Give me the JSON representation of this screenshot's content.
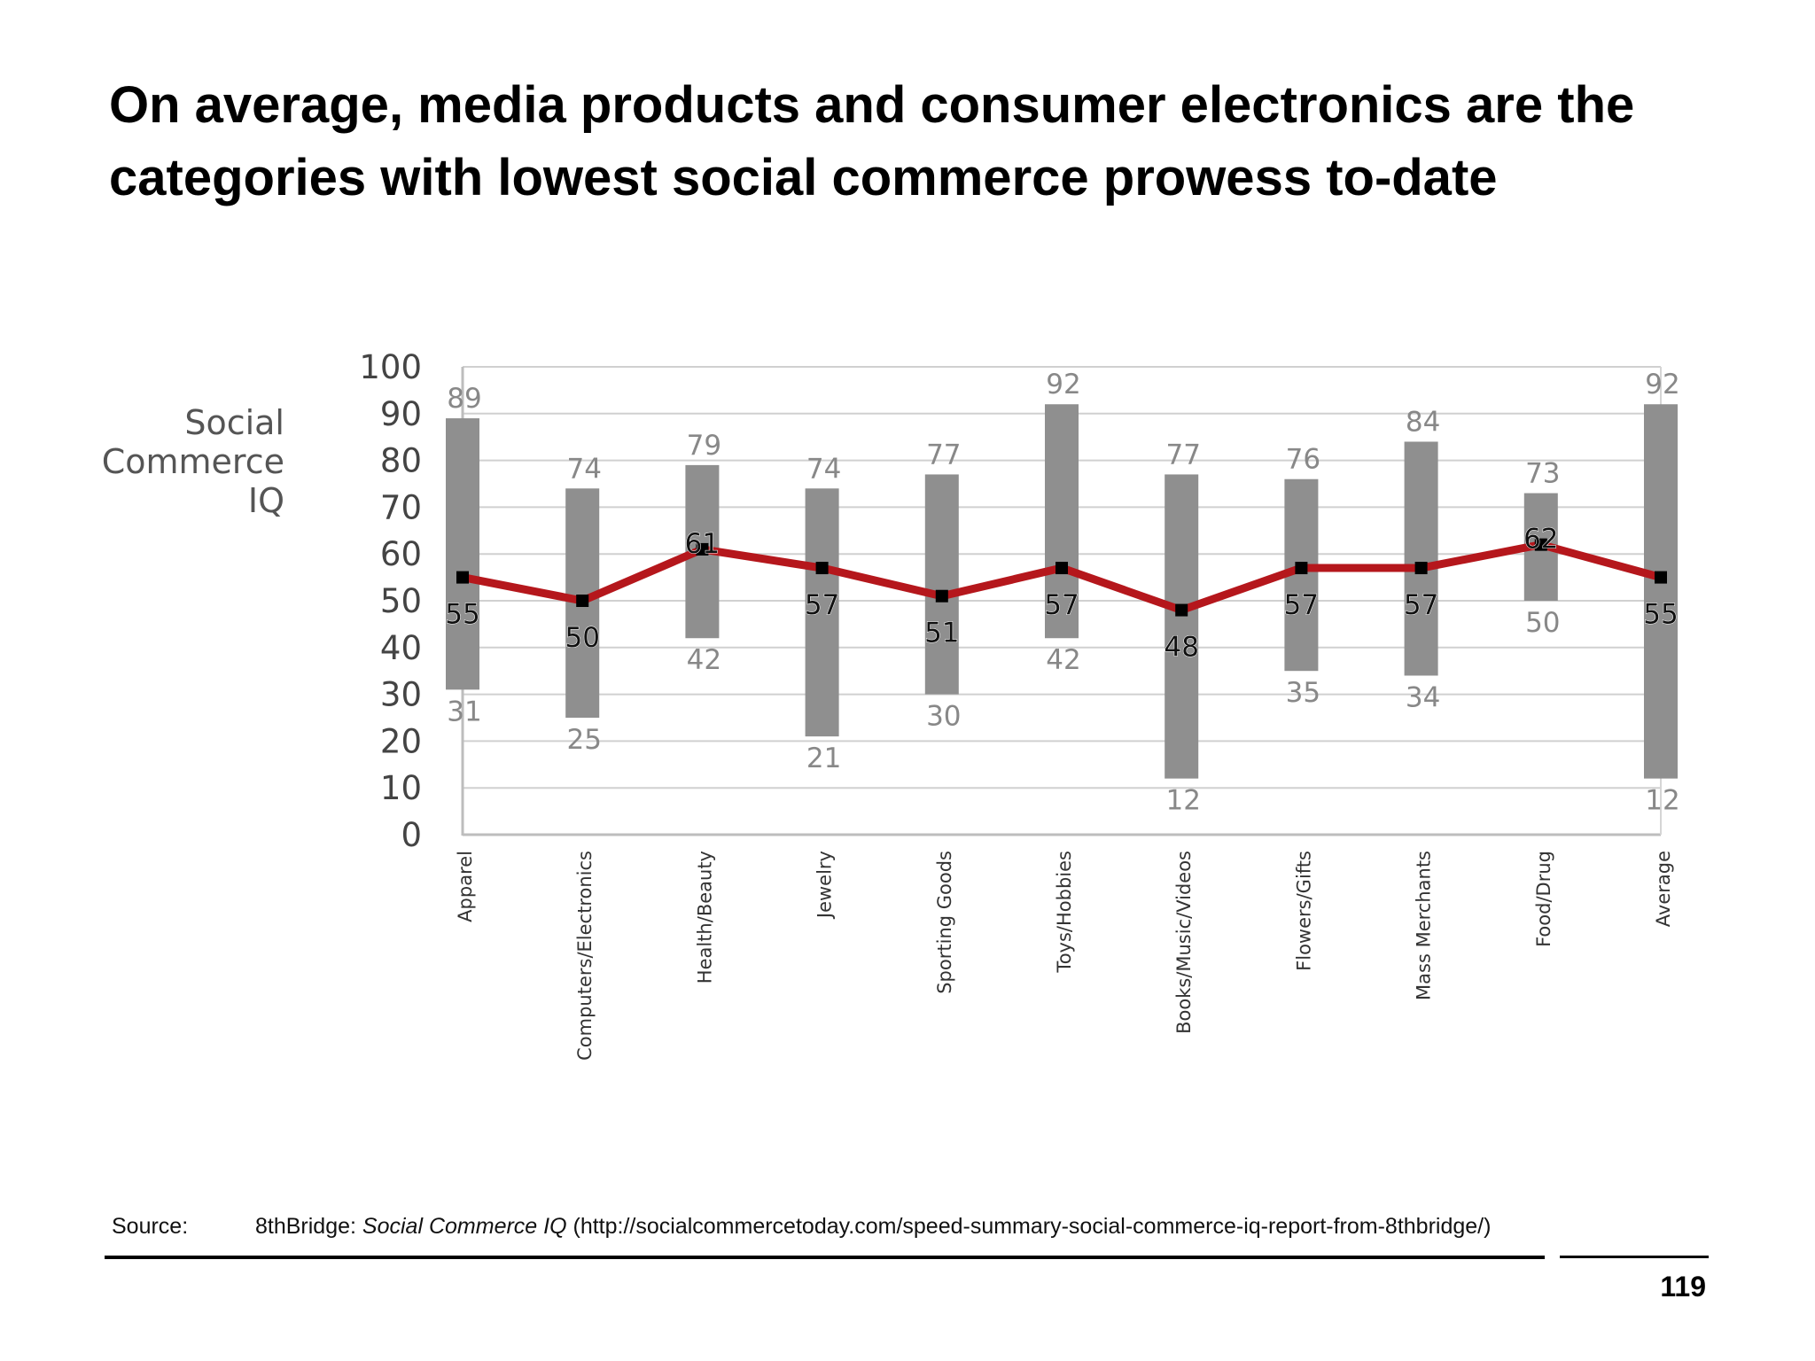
{
  "title": "On average, media products and consumer electronics are the categories with lowest social commerce prowess to-date",
  "source": {
    "label": "Source:",
    "publisher": "8thBridge:",
    "report": "Social Commerce IQ",
    "url": "(http://socialcommercetoday.com/speed-summary-social-commerce-iq-report-from-8thbridge/)"
  },
  "page_number": "119",
  "colors": {
    "range_bar": "#8f8f8f",
    "average_line": "#b5171c",
    "marker": "#000000",
    "grid": "#d0d0d0",
    "axis_text": "#444444",
    "range_label": "#888888"
  },
  "chart_data": {
    "type": "bar",
    "variant": "range bars with average line",
    "ylabel_lines": [
      "Social",
      "Commerce",
      "IQ"
    ],
    "xlabel": "",
    "ylim": [
      0,
      100
    ],
    "yticks": [
      0,
      10,
      20,
      30,
      40,
      50,
      60,
      70,
      80,
      90,
      100
    ],
    "grid": true,
    "categories": [
      "Apparel",
      "Computers/Electronics",
      "Health/Beauty",
      "Jewelry",
      "Sporting Goods",
      "Toys/Hobbies",
      "Books/Music/Videos",
      "Flowers/Gifts",
      "Mass Merchants",
      "Food/Drug",
      "Average"
    ],
    "series": [
      {
        "role": "max",
        "values": [
          89,
          74,
          79,
          74,
          77,
          92,
          77,
          76,
          84,
          73,
          92
        ]
      },
      {
        "role": "min",
        "values": [
          31,
          25,
          42,
          21,
          30,
          42,
          12,
          35,
          34,
          50,
          12
        ]
      },
      {
        "role": "average",
        "values": [
          55,
          50,
          61,
          57,
          51,
          57,
          48,
          57,
          57,
          62,
          55
        ]
      }
    ]
  }
}
